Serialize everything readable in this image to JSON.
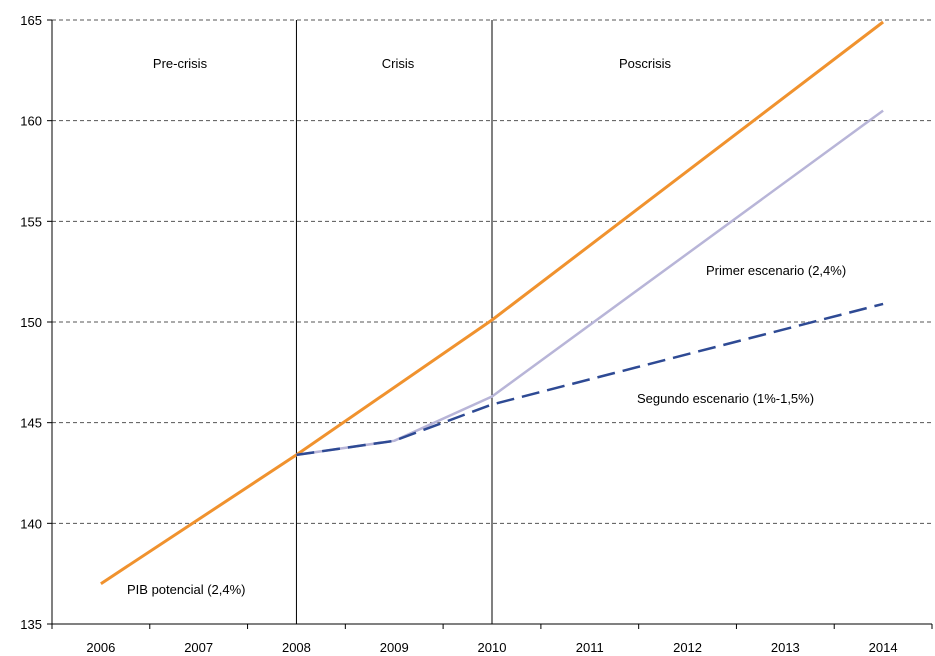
{
  "chart_data": {
    "type": "line",
    "title": "",
    "xlabel": "",
    "ylabel": "",
    "categories": [
      "2006",
      "2007",
      "2008",
      "2009",
      "2010",
      "2011",
      "2012",
      "2013",
      "2014"
    ],
    "ylim": [
      135,
      165
    ],
    "yticks": [
      135,
      140,
      145,
      150,
      155,
      160,
      165
    ],
    "grid": "horizontal-dashed",
    "series": [
      {
        "key": "pib",
        "color": "#f0922e",
        "dash": "solid",
        "points": [
          [
            2006,
            137.0
          ],
          [
            2008,
            143.4
          ],
          [
            2010,
            150.1
          ],
          [
            2014,
            164.9
          ]
        ]
      },
      {
        "key": "primer",
        "color": "#b8b5d8",
        "dash": "solid",
        "points": [
          [
            2008,
            143.4
          ],
          [
            2009,
            144.1
          ],
          [
            2010,
            146.3
          ],
          [
            2014,
            160.5
          ]
        ]
      },
      {
        "key": "segundo",
        "color": "#2e4a94",
        "dash": "dashed",
        "points": [
          [
            2008,
            143.4
          ],
          [
            2009,
            144.1
          ],
          [
            2010,
            145.9
          ],
          [
            2014,
            150.9
          ]
        ]
      }
    ],
    "period_dividers": [
      2008,
      2010
    ],
    "period_labels": {
      "pre": "Pre-crisis",
      "crisis": "Crisis",
      "pos": "Poscrisis"
    },
    "annotations": {
      "pib": "PIB potencial (2,4%)",
      "primer": "Primer escenario (2,4%)",
      "segundo": "Segundo escenario (1%-1,5%)"
    }
  }
}
